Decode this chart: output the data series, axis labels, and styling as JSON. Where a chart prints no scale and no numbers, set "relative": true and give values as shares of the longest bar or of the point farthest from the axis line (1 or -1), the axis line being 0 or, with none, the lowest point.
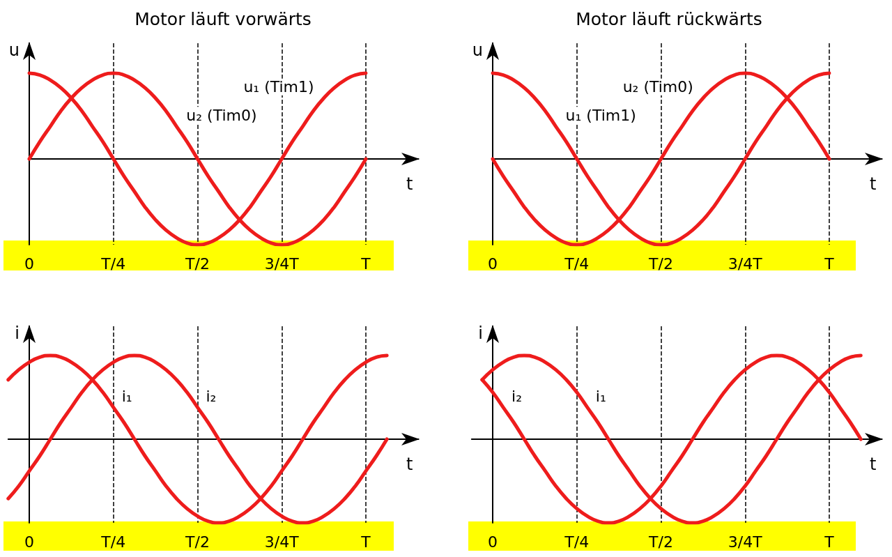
{
  "chart_data": [
    {
      "type": "line",
      "title": "Motor läuft vorwärts",
      "xlabel": "t",
      "ylabel": "u",
      "relative": true,
      "categories": [
        "0",
        null,
        null,
        null,
        null,
        null,
        null,
        null,
        "T/4",
        null,
        null,
        null,
        null,
        null,
        null,
        null,
        "T/2",
        null,
        null,
        null,
        null,
        null,
        null,
        null,
        "3/4T",
        null,
        null,
        null,
        null,
        null,
        null,
        null,
        "T",
        null,
        null,
        null,
        null,
        null
      ],
      "grid": "x",
      "marker": "none",
      "line_style": "solid",
      "series": [
        {
          "name": "u₁ (Tim1)",
          "color": "#ee1c1c",
          "values": [
            1,
            0.98,
            0.92,
            0.83,
            0.71,
            0.56,
            0.38,
            0.2,
            0,
            -0.2,
            -0.38,
            -0.56,
            -0.71,
            -0.83,
            -0.92,
            -0.98,
            -1,
            -0.98,
            -0.92,
            -0.83,
            -0.71,
            -0.56,
            -0.38,
            -0.2,
            0,
            0.2,
            0.38,
            0.56,
            0.71,
            0.83,
            0.92,
            0.98,
            1,
            null,
            null,
            null,
            null,
            null
          ]
        },
        {
          "name": "u₂ (Tim0)",
          "color": "#ee1c1c",
          "values": [
            0,
            0.2,
            0.38,
            0.56,
            0.71,
            0.83,
            0.92,
            0.98,
            1,
            0.98,
            0.92,
            0.83,
            0.71,
            0.56,
            0.38,
            0.2,
            0,
            -0.2,
            -0.38,
            -0.56,
            -0.71,
            -0.83,
            -0.92,
            -0.98,
            -1,
            -0.98,
            -0.92,
            -0.83,
            -0.71,
            -0.56,
            -0.38,
            -0.2,
            0,
            null,
            null,
            null,
            null,
            null
          ]
        }
      ]
    },
    {
      "type": "line",
      "title": "Motor läuft rückwärts",
      "xlabel": "t",
      "ylabel": "u",
      "relative": true,
      "categories": [
        "0",
        null,
        null,
        null,
        null,
        null,
        null,
        null,
        "T/4",
        null,
        null,
        null,
        null,
        null,
        null,
        null,
        "T/2",
        null,
        null,
        null,
        null,
        null,
        null,
        null,
        "3/4T",
        null,
        null,
        null,
        null,
        null,
        null,
        null,
        "T",
        null,
        null,
        null,
        null,
        null
      ],
      "grid": "x",
      "marker": "none",
      "line_style": "solid",
      "series": [
        {
          "name": "u₂ (Tim0)",
          "color": "#ee1c1c",
          "values": [
            0,
            -0.2,
            -0.38,
            -0.56,
            -0.71,
            -0.83,
            -0.92,
            -0.98,
            -1,
            -0.98,
            -0.92,
            -0.83,
            -0.71,
            -0.56,
            -0.38,
            -0.2,
            0,
            0.2,
            0.38,
            0.56,
            0.71,
            0.83,
            0.92,
            0.98,
            1,
            0.98,
            0.92,
            0.83,
            0.71,
            0.56,
            0.38,
            0.2,
            0,
            null,
            null,
            null,
            null,
            null
          ]
        },
        {
          "name": "u₁ (Tim1)",
          "color": "#ee1c1c",
          "values": [
            1,
            0.98,
            0.92,
            0.83,
            0.71,
            0.56,
            0.38,
            0.2,
            0,
            -0.2,
            -0.38,
            -0.56,
            -0.71,
            -0.83,
            -0.92,
            -0.98,
            -1,
            -0.98,
            -0.92,
            -0.83,
            -0.71,
            -0.56,
            -0.38,
            -0.2,
            0,
            0.2,
            0.38,
            0.56,
            0.71,
            0.83,
            0.92,
            0.98,
            1,
            null,
            null,
            null,
            null,
            null
          ]
        }
      ]
    },
    {
      "type": "line",
      "xlabel": "t",
      "ylabel": "i",
      "relative": true,
      "categories": [
        null,
        null,
        "0",
        null,
        null,
        null,
        null,
        null,
        null,
        null,
        "T/4",
        null,
        null,
        null,
        null,
        null,
        null,
        null,
        "T/2",
        null,
        null,
        null,
        null,
        null,
        null,
        null,
        "3/4T",
        null,
        null,
        null,
        null,
        null,
        null,
        null,
        "T",
        null,
        null,
        null,
        null,
        null
      ],
      "grid": "x",
      "marker": "none",
      "line_style": "solid",
      "series": [
        {
          "name": "i₁",
          "color": "#ee1c1c",
          "values": [
            0.71,
            0.83,
            0.92,
            0.98,
            1,
            0.98,
            0.92,
            0.83,
            0.71,
            0.56,
            0.38,
            0.2,
            0,
            -0.2,
            -0.38,
            -0.56,
            -0.71,
            -0.83,
            -0.92,
            -0.98,
            -1,
            -0.98,
            -0.92,
            -0.83,
            -0.71,
            -0.56,
            -0.38,
            -0.2,
            0,
            0.2,
            0.38,
            0.56,
            0.71,
            0.83,
            0.92,
            0.98,
            1,
            null,
            null,
            null
          ]
        },
        {
          "name": "i₂",
          "color": "#ee1c1c",
          "values": [
            -0.71,
            -0.56,
            -0.38,
            -0.2,
            0,
            0.2,
            0.38,
            0.56,
            0.71,
            0.83,
            0.92,
            0.98,
            1,
            0.98,
            0.92,
            0.83,
            0.71,
            0.56,
            0.38,
            0.2,
            0,
            -0.2,
            -0.38,
            -0.56,
            -0.71,
            -0.83,
            -0.92,
            -0.98,
            -1,
            -0.98,
            -0.92,
            -0.83,
            -0.71,
            -0.56,
            -0.38,
            -0.2,
            0,
            null,
            null,
            null
          ]
        }
      ]
    },
    {
      "type": "line",
      "xlabel": "t",
      "ylabel": "i",
      "relative": true,
      "categories": [
        null,
        null,
        "0",
        null,
        null,
        null,
        null,
        null,
        null,
        null,
        "T/4",
        null,
        null,
        null,
        null,
        null,
        null,
        null,
        "T/2",
        null,
        null,
        null,
        null,
        null,
        null,
        null,
        "3/4T",
        null,
        null,
        null,
        null,
        null,
        null,
        null,
        "T",
        null,
        null,
        null,
        null,
        null
      ],
      "grid": "x",
      "marker": "none",
      "line_style": "solid",
      "series": [
        {
          "name": "i₂",
          "color": "#ee1c1c",
          "values": [
            null,
            0.71,
            0.56,
            0.38,
            0.2,
            0,
            -0.2,
            -0.38,
            -0.56,
            -0.71,
            -0.83,
            -0.92,
            -0.98,
            -1,
            -0.98,
            -0.92,
            -0.83,
            -0.71,
            -0.56,
            -0.38,
            -0.2,
            0,
            0.2,
            0.38,
            0.56,
            0.71,
            0.83,
            0.92,
            0.98,
            1,
            0.98,
            0.92,
            0.83,
            0.71,
            0.56,
            0.38,
            0.2,
            0,
            null,
            null
          ]
        },
        {
          "name": "i₁",
          "color": "#ee1c1c",
          "values": [
            null,
            0.71,
            0.83,
            0.92,
            0.98,
            1,
            0.98,
            0.92,
            0.83,
            0.71,
            0.56,
            0.38,
            0.2,
            0,
            -0.2,
            -0.38,
            -0.56,
            -0.71,
            -0.83,
            -0.92,
            -0.98,
            -1,
            -0.98,
            -0.92,
            -0.83,
            -0.71,
            -0.56,
            -0.38,
            -0.2,
            0,
            0.2,
            0.38,
            0.56,
            0.71,
            0.83,
            0.92,
            0.98,
            1,
            null,
            null
          ]
        }
      ]
    }
  ]
}
